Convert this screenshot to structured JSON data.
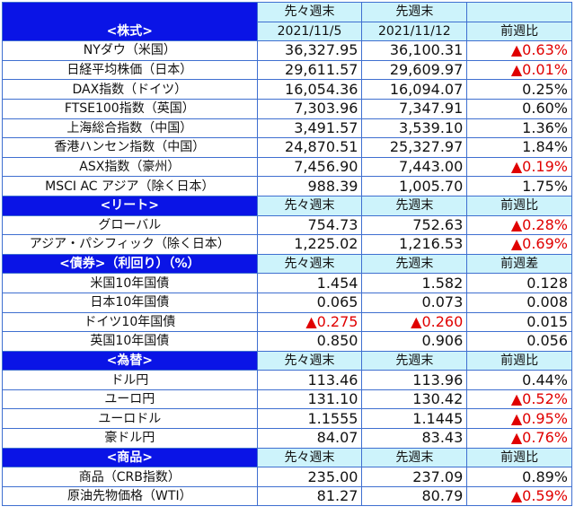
{
  "colors": {
    "section_bg": "#0a14e6",
    "header_bg": "#cdf3fb",
    "negative": "#e00000",
    "border": "#3f6fd0"
  },
  "header": {
    "col1": "先々週末",
    "col2": "先週末",
    "date1": "2021/11/5",
    "date2": "2021/11/12",
    "col3": "前週比"
  },
  "sections": [
    {
      "title": "<株式>",
      "h1": "先々週末",
      "h2": "先週末",
      "h3": "前週比",
      "rows": [
        {
          "name": "NYダウ（米国）",
          "v1": "36,327.95",
          "v2": "36,100.31",
          "chg": "▲0.63%",
          "neg": true
        },
        {
          "name": "日経平均株価（日本）",
          "v1": "29,611.57",
          "v2": "29,609.97",
          "chg": "▲0.01%",
          "neg": true
        },
        {
          "name": "DAX指数（ドイツ）",
          "v1": "16,054.36",
          "v2": "16,094.07",
          "chg": "0.25%",
          "neg": false
        },
        {
          "name": "FTSE100指数（英国）",
          "v1": "7,303.96",
          "v2": "7,347.91",
          "chg": "0.60%",
          "neg": false
        },
        {
          "name": "上海総合指数（中国）",
          "v1": "3,491.57",
          "v2": "3,539.10",
          "chg": "1.36%",
          "neg": false
        },
        {
          "name": "香港ハンセン指数（中国）",
          "v1": "24,870.51",
          "v2": "25,327.97",
          "chg": "1.84%",
          "neg": false
        },
        {
          "name": "ASX指数（豪州）",
          "v1": "7,456.90",
          "v2": "7,443.00",
          "chg": "▲0.19%",
          "neg": true
        },
        {
          "name": "MSCI AC アジア（除く日本）",
          "v1": "988.39",
          "v2": "1,005.70",
          "chg": "1.75%",
          "neg": false
        }
      ]
    },
    {
      "title": "<リート>",
      "h1": "先々週末",
      "h2": "先週末",
      "h3": "前週比",
      "rows": [
        {
          "name": "グローバル",
          "v1": "754.73",
          "v2": "752.63",
          "chg": "▲0.28%",
          "neg": true
        },
        {
          "name": "アジア・パシフィック（除く日本）",
          "v1": "1,225.02",
          "v2": "1,216.53",
          "chg": "▲0.69%",
          "neg": true
        }
      ]
    },
    {
      "title": "<債券>（利回り）（%）",
      "h1": "先々週末",
      "h2": "先週末",
      "h3": "前週差",
      "rows": [
        {
          "name": "米国10年国債",
          "v1": "1.454",
          "v2": "1.582",
          "chg": "0.128",
          "neg": false
        },
        {
          "name": "日本10年国債",
          "v1": "0.065",
          "v2": "0.073",
          "chg": "0.008",
          "neg": false
        },
        {
          "name": "ドイツ10年国債",
          "v1": "▲0.275",
          "v2": "▲0.260",
          "chg": "0.015",
          "neg": false,
          "v_neg": true
        },
        {
          "name": "英国10年国債",
          "v1": "0.850",
          "v2": "0.906",
          "chg": "0.056",
          "neg": false
        }
      ]
    },
    {
      "title": "<為替>",
      "h1": "先々週末",
      "h2": "先週末",
      "h3": "前週比",
      "rows": [
        {
          "name": "ドル円",
          "v1": "113.46",
          "v2": "113.96",
          "chg": "0.44%",
          "neg": false
        },
        {
          "name": "ユーロ円",
          "v1": "131.10",
          "v2": "130.42",
          "chg": "▲0.52%",
          "neg": true
        },
        {
          "name": "ユーロドル",
          "v1": "1.1555",
          "v2": "1.1445",
          "chg": "▲0.95%",
          "neg": true
        },
        {
          "name": "豪ドル円",
          "v1": "84.07",
          "v2": "83.43",
          "chg": "▲0.76%",
          "neg": true
        }
      ]
    },
    {
      "title": "<商品>",
      "h1": "先々週末",
      "h2": "先週末",
      "h3": "前週比",
      "rows": [
        {
          "name": "商品（CRB指数）",
          "v1": "235.00",
          "v2": "237.09",
          "chg": "0.89%",
          "neg": false
        },
        {
          "name": "原油先物価格（WTI）",
          "v1": "81.27",
          "v2": "80.79",
          "chg": "▲0.59%",
          "neg": true
        }
      ]
    }
  ]
}
